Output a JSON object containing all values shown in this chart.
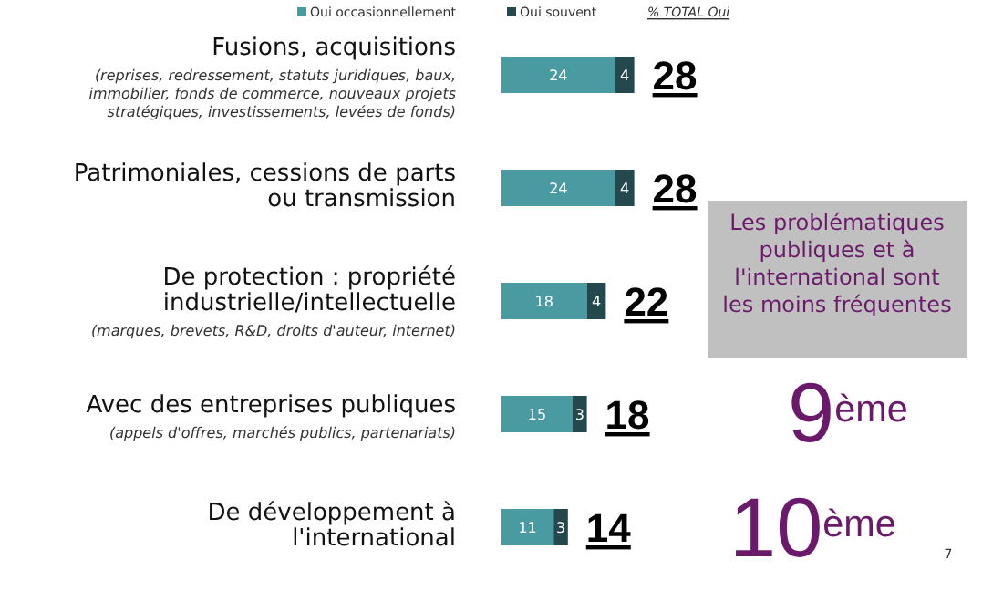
{
  "chart_data": {
    "type": "bar",
    "orientation": "horizontal",
    "stacked": true,
    "data_labels": true,
    "legend": "top",
    "categories": [
      "Fusions, acquisitions (reprises, redressement, statuts juridiques, baux, immobilier, fonds de commerce, nouveaux projets stratégiques, investissements, levées de fonds)",
      "Patrimoniales, cessions de parts ou transmission",
      "De protection : propriété industrielle/intellectuelle (marques, brevets, R&D, droits d'auteur, internet)",
      "Avec des entreprises publiques (appels d'offres, marchés publics, partenariats)",
      "De développement à l'international"
    ],
    "series": [
      {
        "name": "Oui occasionnellement",
        "color": "#4a9ba1",
        "values": [
          24,
          24,
          18,
          15,
          11
        ]
      },
      {
        "name": "Oui souvent",
        "color": "#24494d",
        "values": [
          4,
          4,
          4,
          3,
          3
        ]
      }
    ],
    "totals": [
      "28",
      "28",
      "22",
      "18",
      "14"
    ],
    "annotations": [
      "% TOTAL Oui",
      "Les problématiques publiques et à l'international sont les moins fréquentes",
      "9$^{ème}$",
      "10$^{ème}$",
      "7"
    ]
  }
}
